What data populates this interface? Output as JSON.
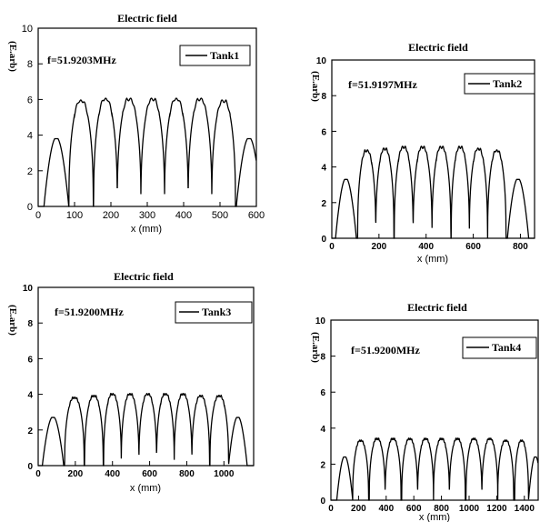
{
  "chart_data": [
    {
      "id": "tank1",
      "type": "line",
      "title": "Electric field",
      "annotation": "f=51.9203MHz",
      "xlabel": "x (mm)",
      "ylabel": "(E.arb)",
      "xlim": [
        0,
        600
      ],
      "ylim": [
        0,
        10
      ],
      "xticks": [
        "0",
        "100",
        "200",
        "300",
        "400",
        "500",
        "600"
      ],
      "yticks": [
        "0",
        "2",
        "4",
        "6",
        "8",
        "10"
      ],
      "legend": "Tank1",
      "legend_position": "top-right",
      "grid": false,
      "peaks": [
        {
          "x": 50,
          "y": 3.8
        },
        {
          "x": 118,
          "y": 5.9
        },
        {
          "x": 185,
          "y": 6.0
        },
        {
          "x": 250,
          "y": 6.0
        },
        {
          "x": 315,
          "y": 6.0
        },
        {
          "x": 380,
          "y": 6.0
        },
        {
          "x": 445,
          "y": 6.0
        },
        {
          "x": 510,
          "y": 5.9
        },
        {
          "x": 580,
          "y": 3.8
        }
      ]
    },
    {
      "id": "tank2",
      "type": "line",
      "title": "Electric field",
      "annotation": "f=51.9197MHz",
      "xlabel": "x (mm)",
      "ylabel": "(E.arb)",
      "xlim": [
        0,
        860
      ],
      "ylim": [
        0,
        10
      ],
      "xticks": [
        "0",
        "200",
        "400",
        "600",
        "800"
      ],
      "yticks": [
        "0",
        "2",
        "4",
        "6",
        "8",
        "10"
      ],
      "legend": "Tank2",
      "legend_position": "top-right",
      "grid": false,
      "peaks": [
        {
          "x": 60,
          "y": 3.3
        },
        {
          "x": 148,
          "y": 4.9
        },
        {
          "x": 225,
          "y": 5.0
        },
        {
          "x": 305,
          "y": 5.1
        },
        {
          "x": 385,
          "y": 5.1
        },
        {
          "x": 465,
          "y": 5.1
        },
        {
          "x": 545,
          "y": 5.1
        },
        {
          "x": 622,
          "y": 5.0
        },
        {
          "x": 700,
          "y": 4.9
        },
        {
          "x": 790,
          "y": 3.3
        }
      ]
    },
    {
      "id": "tank3",
      "type": "line",
      "title": "Electric field",
      "annotation": "f=51.9200MHz",
      "xlabel": "x (mm)",
      "ylabel": "(E.arb)",
      "xlim": [
        0,
        1160
      ],
      "ylim": [
        0,
        10
      ],
      "xticks": [
        "0",
        "200",
        "400",
        "600",
        "800",
        "1000"
      ],
      "yticks": [
        "0",
        "2",
        "4",
        "6",
        "8",
        "10"
      ],
      "legend": "Tank3",
      "legend_position": "top-right",
      "grid": false,
      "peaks": [
        {
          "x": 80,
          "y": 2.7
        },
        {
          "x": 195,
          "y": 3.8
        },
        {
          "x": 300,
          "y": 3.9
        },
        {
          "x": 400,
          "y": 4.0
        },
        {
          "x": 495,
          "y": 4.0
        },
        {
          "x": 590,
          "y": 4.0
        },
        {
          "x": 685,
          "y": 4.0
        },
        {
          "x": 780,
          "y": 4.0
        },
        {
          "x": 875,
          "y": 3.9
        },
        {
          "x": 975,
          "y": 3.9
        },
        {
          "x": 1075,
          "y": 2.7
        }
      ]
    },
    {
      "id": "tank4",
      "type": "line",
      "title": "Electric field",
      "annotation": "f=51.9200MHz",
      "xlabel": "x (mm)",
      "ylabel": "(E.arb)",
      "xlim": [
        0,
        1500
      ],
      "ylim": [
        0,
        10
      ],
      "xticks": [
        "0",
        "200",
        "400",
        "600",
        "800",
        "1000",
        "1200",
        "1400"
      ],
      "yticks": [
        "0",
        "2",
        "4",
        "6",
        "8",
        "10"
      ],
      "legend": "Tank4",
      "legend_position": "top-right",
      "grid": false,
      "peaks": [
        {
          "x": 100,
          "y": 2.4
        },
        {
          "x": 215,
          "y": 3.3
        },
        {
          "x": 335,
          "y": 3.4
        },
        {
          "x": 450,
          "y": 3.4
        },
        {
          "x": 570,
          "y": 3.4
        },
        {
          "x": 685,
          "y": 3.4
        },
        {
          "x": 800,
          "y": 3.4
        },
        {
          "x": 915,
          "y": 3.4
        },
        {
          "x": 1035,
          "y": 3.4
        },
        {
          "x": 1150,
          "y": 3.4
        },
        {
          "x": 1265,
          "y": 3.3
        },
        {
          "x": 1380,
          "y": 3.3
        },
        {
          "x": 1480,
          "y": 2.4
        }
      ]
    }
  ]
}
